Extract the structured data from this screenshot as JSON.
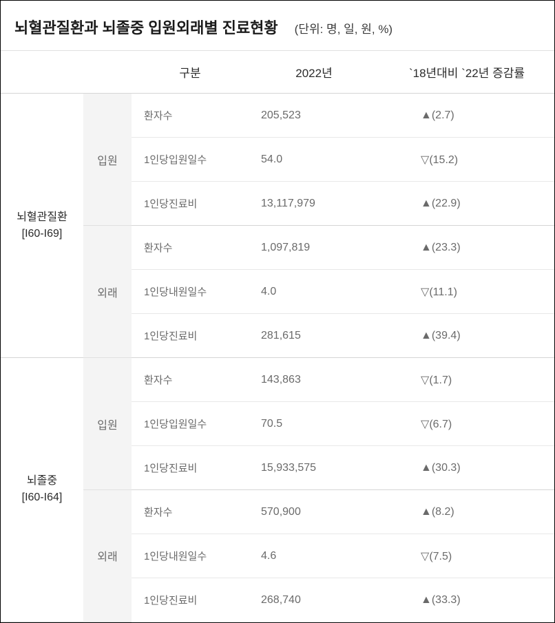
{
  "header": {
    "title": "뇌혈관질환과 뇌졸중 입원외래별 진료현황",
    "unit": "(단위: 명, 일, 원, %)"
  },
  "columns": {
    "classification": "구분",
    "year": "2022년",
    "change": "`18년대비 `22년 증감률"
  },
  "groups": [
    {
      "category_line1": "뇌혈관질환",
      "category_line2": "[I60-I69]",
      "sections": [
        {
          "type": "입원",
          "rows": [
            {
              "metric": "환자수",
              "value": "205,523",
              "dir": "up",
              "change": "(2.7)"
            },
            {
              "metric": "1인당입원일수",
              "value": "54.0",
              "dir": "down",
              "change": "(15.2)"
            },
            {
              "metric": "1인당진료비",
              "value": "13,117,979",
              "dir": "up",
              "change": "(22.9)"
            }
          ]
        },
        {
          "type": "외래",
          "rows": [
            {
              "metric": "환자수",
              "value": "1,097,819",
              "dir": "up",
              "change": "(23.3)"
            },
            {
              "metric": "1인당내원일수",
              "value": "4.0",
              "dir": "down",
              "change": "(11.1)"
            },
            {
              "metric": "1인당진료비",
              "value": "281,615",
              "dir": "up",
              "change": "(39.4)"
            }
          ]
        }
      ]
    },
    {
      "category_line1": "뇌졸중",
      "category_line2": "[I60-I64]",
      "sections": [
        {
          "type": "입원",
          "rows": [
            {
              "metric": "환자수",
              "value": "143,863",
              "dir": "down",
              "change": "(1.7)"
            },
            {
              "metric": "1인당입원일수",
              "value": "70.5",
              "dir": "down",
              "change": "(6.7)"
            },
            {
              "metric": "1인당진료비",
              "value": "15,933,575",
              "dir": "up",
              "change": "(30.3)"
            }
          ]
        },
        {
          "type": "외래",
          "rows": [
            {
              "metric": "환자수",
              "value": "570,900",
              "dir": "up",
              "change": "(8.2)"
            },
            {
              "metric": "1인당내원일수",
              "value": "4.6",
              "dir": "down",
              "change": "(7.5)"
            },
            {
              "metric": "1인당진료비",
              "value": "268,740",
              "dir": "up",
              "change": "(33.3)"
            }
          ]
        }
      ]
    }
  ],
  "styling": {
    "bg_color": "#ffffff",
    "border_color": "#000000",
    "divider_color": "#e0e0e0",
    "group_border_color": "#d5d5d5",
    "type_bg": "#f4f4f4",
    "title_color": "#1a1a1a",
    "text_color": "#6a6a6a",
    "title_fontsize": 22,
    "header_fontsize": 17,
    "cell_fontsize": 16,
    "up_symbol": "▲",
    "down_symbol": "▽"
  }
}
